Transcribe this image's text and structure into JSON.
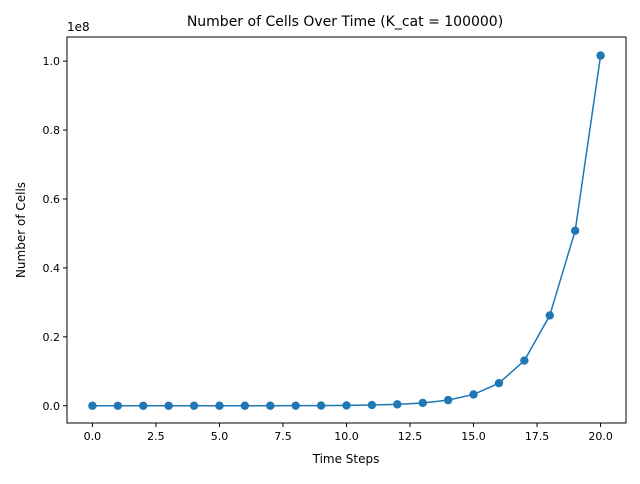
{
  "chart_data": {
    "type": "line",
    "title": "Number of Cells Over Time (K_cat = 100000)",
    "xlabel": "Time Steps",
    "ylabel": "Number of Cells",
    "y_offset_label": "1e8",
    "xlim": [
      -1.0,
      21.0
    ],
    "ylim": [
      -0.05,
      1.07
    ],
    "y_scale": 100000000,
    "x_ticks": [
      0.0,
      2.5,
      5.0,
      7.5,
      10.0,
      12.5,
      15.0,
      17.5,
      20.0
    ],
    "x_tick_labels": [
      "0.0",
      "2.5",
      "5.0",
      "7.5",
      "10.0",
      "12.5",
      "15.0",
      "17.5",
      "20.0"
    ],
    "y_ticks": [
      0.0,
      0.2,
      0.4,
      0.6,
      0.8,
      1.0
    ],
    "y_tick_labels": [
      "0.0",
      "0.2",
      "0.4",
      "0.6",
      "0.8",
      "1.0"
    ],
    "grid": false,
    "legend": "none",
    "series": [
      {
        "color": "#1f77b4",
        "marker": "circle",
        "x": [
          0,
          1,
          2,
          3,
          4,
          5,
          6,
          7,
          8,
          9,
          10,
          11,
          12,
          13,
          14,
          15,
          16,
          17,
          18,
          19,
          20
        ],
        "y": [
          100,
          200,
          400,
          800,
          1600,
          3200,
          6400,
          12800,
          25600,
          51200,
          102400,
          204800,
          409600,
          819200,
          1638400,
          3276800,
          6553600,
          13107200,
          26214400,
          50800000,
          101600000
        ]
      }
    ]
  }
}
